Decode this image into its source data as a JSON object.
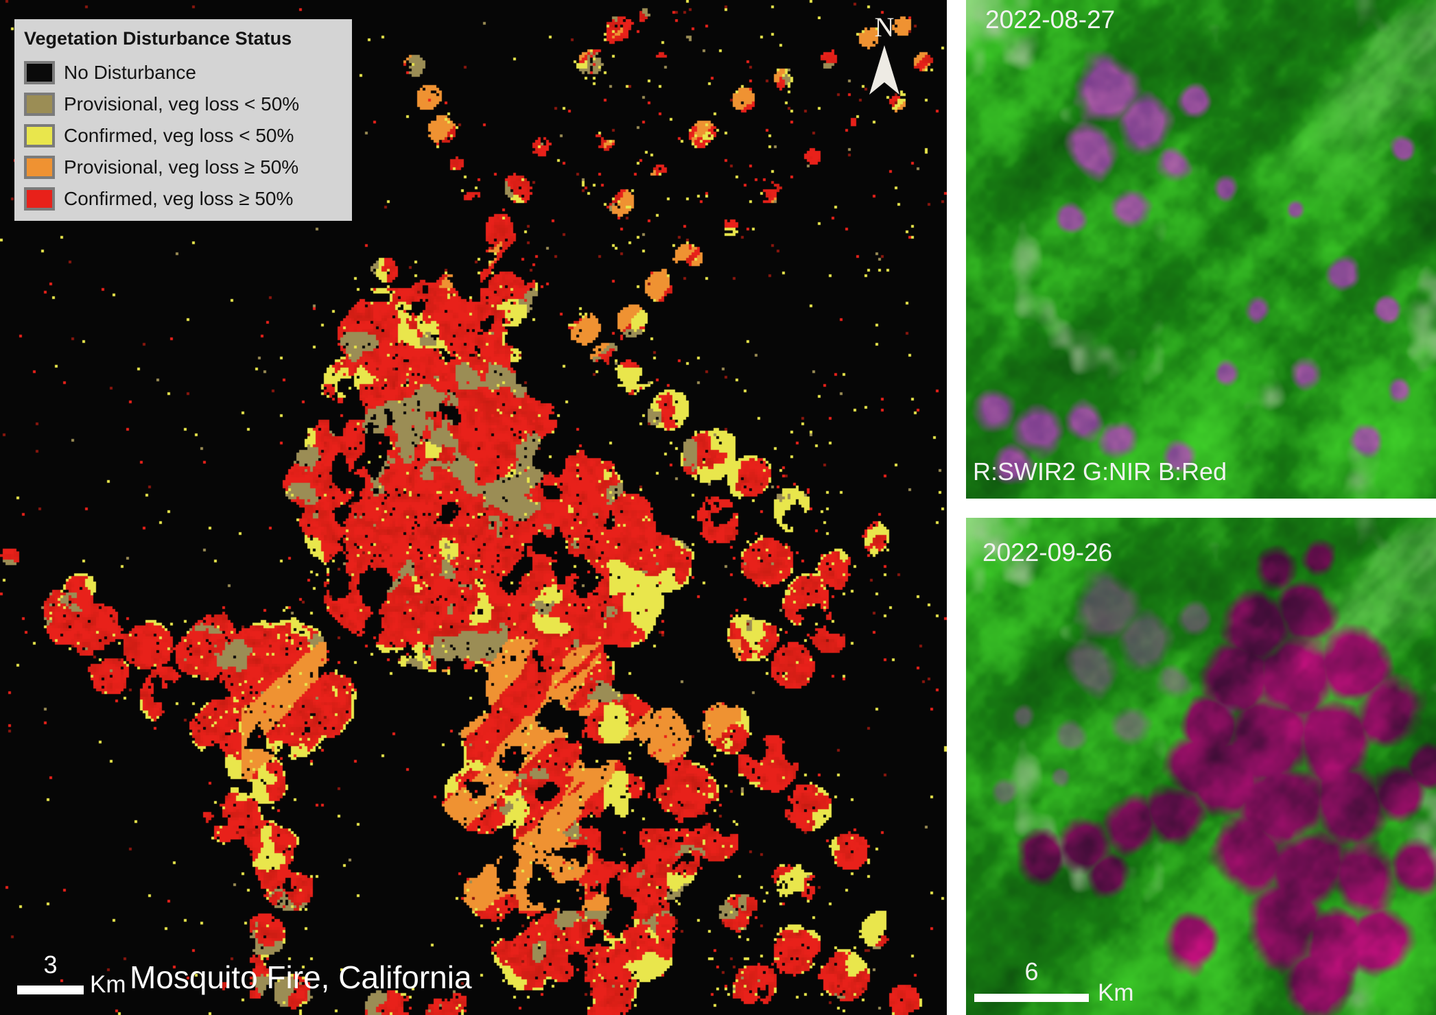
{
  "map": {
    "title": "Mosquito Fire, California",
    "north_label": "N",
    "scalebar": {
      "value": "3",
      "unit": "Km"
    },
    "legend": {
      "title": "Vegetation Disturbance Status",
      "items": [
        {
          "label": "No Disturbance",
          "color": "#0a0a0a"
        },
        {
          "label": "Provisional, veg loss < 50%",
          "color": "#9b8d55"
        },
        {
          "label": "Confirmed, veg loss < 50%",
          "color": "#e9e64c"
        },
        {
          "label": "Provisional, veg loss ≥ 50%",
          "color": "#ef9232"
        },
        {
          "label": "Confirmed, veg loss ≥ 50%",
          "color": "#e8211a"
        }
      ]
    }
  },
  "satellite_panels": [
    {
      "date": "2022-08-27",
      "band_label": "R:SWIR2 G:NIR B:Red"
    },
    {
      "date": "2022-09-26",
      "scalebar": {
        "value": "6",
        "unit": "Km"
      }
    }
  ],
  "palette": {
    "divider": "#ffffff",
    "north_arrow": "#eeebe4",
    "map_background": "#060606",
    "map_red_dark": "#c81c12",
    "map_speckle_dark_red": "#8a170e",
    "legend_background": "#d4d4d4",
    "legend_text": "#141414",
    "swatch_border": "#7b7b7b",
    "satellite": {
      "green_dark": "#05280a",
      "green_mid": "#177b12",
      "green_bright": "#46dd2e",
      "pale": "#c8d0bd",
      "pink": "#c257be",
      "purple": "#8a35a2",
      "burn_bright": "#e81190",
      "burn_mid": "#9c106e",
      "burn_dark": "#380d33"
    }
  }
}
